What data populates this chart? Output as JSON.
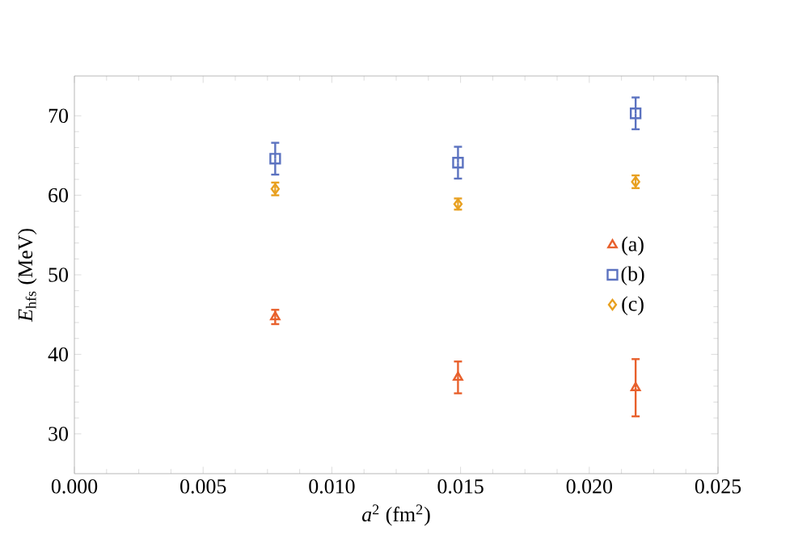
{
  "chart_data": {
    "type": "scatter",
    "xlabel": "*a*$^{2}$ (fm$^{2}$)",
    "ylabel": "*E*$_{hfs}$ (MeV)",
    "x": [
      0.0078,
      0.0149,
      0.0218
    ],
    "series": [
      {
        "name": "(a)",
        "color": "#e8602c",
        "marker": "triangle",
        "values": [
          44.7,
          37.1,
          35.8
        ],
        "errors": [
          0.9,
          2.0,
          3.6
        ]
      },
      {
        "name": "(b)",
        "color": "#5b72c0",
        "marker": "square",
        "values": [
          64.6,
          64.1,
          70.3
        ],
        "errors": [
          2.0,
          2.0,
          2.0
        ]
      },
      {
        "name": "(c)",
        "color": "#e8a020",
        "marker": "diamond",
        "values": [
          60.8,
          58.9,
          61.7
        ],
        "errors": [
          0.8,
          0.7,
          0.8
        ]
      }
    ],
    "xlim": [
      0,
      0.025
    ],
    "ylim": [
      25,
      75
    ],
    "xticks": [
      {
        "value": 0,
        "label": "0.000"
      },
      {
        "value": 0.005,
        "label": "0.005"
      },
      {
        "value": 0.01,
        "label": "0.010"
      },
      {
        "value": 0.015,
        "label": "0.015"
      },
      {
        "value": 0.02,
        "label": "0.020"
      },
      {
        "value": 0.025,
        "label": "0.025"
      }
    ],
    "yticks": [
      30,
      40,
      50,
      60,
      70
    ],
    "legend": "right",
    "grid": false
  }
}
